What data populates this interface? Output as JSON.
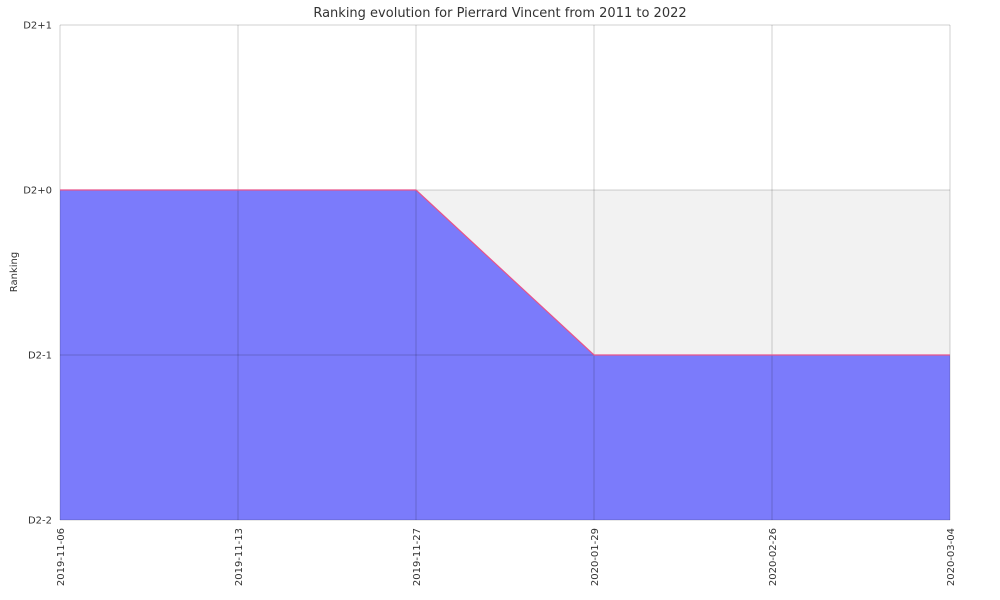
{
  "chart_data": {
    "type": "area",
    "title": "Ranking evolution for Pierrard Vincent from 2011 to 2022",
    "xlabel": "",
    "ylabel": "Ranking",
    "x": [
      "2019-11-06",
      "2019-11-13",
      "2019-11-27",
      "2020-01-29",
      "2020-02-26",
      "2020-03-04"
    ],
    "y_ticks": [
      "D2-2",
      "D2-1",
      "D2+0",
      "D2+1"
    ],
    "series": [
      {
        "values": [
          "D2+0",
          "D2+0",
          "D2+0",
          "D2-1",
          "D2-1",
          "D2-1"
        ],
        "fill_color": "#7b7bfb",
        "line_color": "#e8548a"
      }
    ],
    "max_band": {
      "upper": "D2+0",
      "lower": "D2-1",
      "color": "#f2f2f2"
    },
    "grid": true
  }
}
